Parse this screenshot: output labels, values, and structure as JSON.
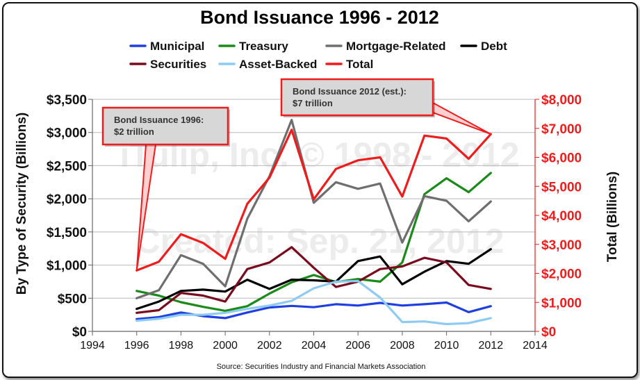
{
  "chart_data": {
    "type": "line",
    "title": "Bond Issuance 1996 - 2012",
    "ylabel": "By Type of Security (Billions)",
    "y2label": "Total (Billions)",
    "source": "Source: Securities Industry and Financial Markets Association",
    "xlim": [
      1994,
      2014
    ],
    "xticks": [
      "1994",
      "1996",
      "1998",
      "2000",
      "2002",
      "2004",
      "2006",
      "2008",
      "2010",
      "2012",
      "2014"
    ],
    "ylim": [
      0,
      3500
    ],
    "yticks": [
      "$0",
      "$500",
      "$1,000",
      "$1,500",
      "$2,000",
      "$2,500",
      "$3,000",
      "$3,500"
    ],
    "y2lim": [
      0,
      8000
    ],
    "y2ticks": [
      "$0",
      "$1,000",
      "$2,000",
      "$3,000",
      "$4,000",
      "$5,000",
      "$6,000",
      "$7,000",
      "$8,000"
    ],
    "x": [
      1996,
      1997,
      1998,
      1999,
      2000,
      2001,
      2002,
      2003,
      2004,
      2005,
      2006,
      2007,
      2008,
      2009,
      2010,
      2011,
      2012
    ],
    "series": [
      {
        "name": "Municipal",
        "color": "#1f3fe0",
        "axis": "left",
        "values": [
          185,
          215,
          285,
          230,
          200,
          285,
          360,
          385,
          365,
          410,
          390,
          430,
          390,
          410,
          435,
          290,
          380
        ]
      },
      {
        "name": "Treasury",
        "color": "#1a8a1a",
        "axis": "left",
        "values": [
          610,
          540,
          440,
          370,
          310,
          380,
          570,
          740,
          850,
          745,
          790,
          750,
          1040,
          2070,
          2310,
          2100,
          2390
        ]
      },
      {
        "name": "Mortgage-Related",
        "color": "#6e6e6e",
        "axis": "left",
        "values": [
          500,
          620,
          1150,
          1020,
          680,
          1700,
          2340,
          3190,
          1940,
          2250,
          2150,
          2230,
          1340,
          2040,
          1970,
          1660,
          1960
        ]
      },
      {
        "name": "Debt",
        "color": "#000000",
        "axis": "left",
        "values": [
          340,
          450,
          610,
          630,
          600,
          780,
          640,
          780,
          770,
          750,
          1060,
          1130,
          710,
          900,
          1060,
          1020,
          1240
        ]
      },
      {
        "name": "Securities",
        "color": "#7a0a1e",
        "axis": "left",
        "values": [
          280,
          320,
          580,
          540,
          450,
          940,
          1040,
          1270,
          960,
          670,
          750,
          940,
          980,
          1110,
          1040,
          700,
          640
        ]
      },
      {
        "name": "Asset-Backed",
        "color": "#8ecbf3",
        "axis": "left",
        "values": [
          160,
          190,
          250,
          250,
          280,
          340,
          390,
          460,
          650,
          750,
          760,
          510,
          140,
          150,
          110,
          125,
          200
        ]
      },
      {
        "name": "Total",
        "color": "#ee1c1c",
        "axis": "right",
        "values": [
          2100,
          2400,
          3350,
          3050,
          2500,
          4400,
          5300,
          6950,
          4550,
          5600,
          5900,
          6000,
          4650,
          6750,
          6650,
          5950,
          6800
        ]
      }
    ],
    "legend": {
      "rows": [
        [
          "Municipal",
          "Treasury",
          "Mortgage-Related",
          "Debt"
        ],
        [
          "Securities",
          "Asset-Backed",
          "Total"
        ]
      ],
      "placement": "top"
    },
    "annotations": [
      {
        "lines": [
          "Bond Issuance 1996:",
          "$2 trillion"
        ],
        "x": 1996,
        "series": "Total"
      },
      {
        "lines": [
          "Bond Issuance 2012 (est.):",
          "$7 trillion"
        ],
        "x": 2012,
        "series": "Total"
      }
    ],
    "watermark": [
      "iTulip, Inc. © 1998 - 2012",
      "Created: Sep. 21, 2012"
    ],
    "grid": true,
    "right_axis_color": "#ee1c1c"
  }
}
